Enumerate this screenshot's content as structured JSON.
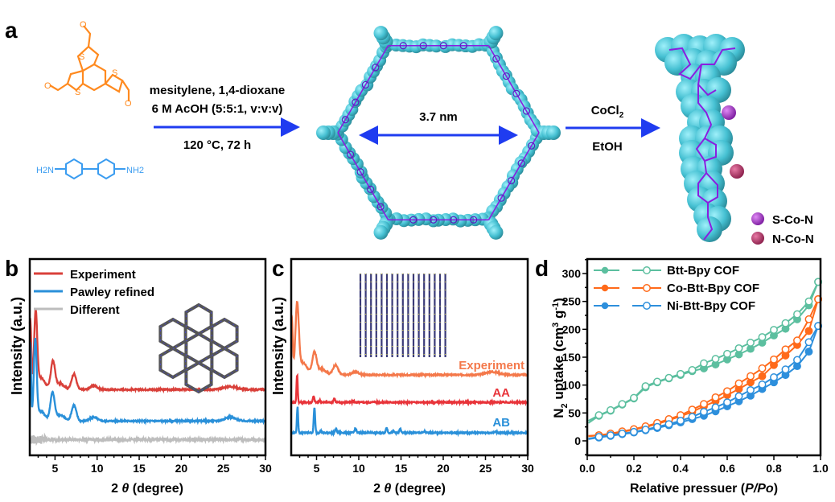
{
  "panel_a": {
    "label": "a",
    "aldehyde_color": "#ff8a1f",
    "amine_color": "#3a9cf0",
    "amine_left": "H2N",
    "amine_right": "NH2",
    "step1": {
      "line1": "mesitylene, 1,4-dioxane",
      "line2": "6 M AcOH (5:5:1, v:v:v)",
      "line3": "120 °C, 72 h"
    },
    "pore_size": "3.7 nm",
    "step2": {
      "reagent": "CoCl",
      "reagent_sub": "2",
      "solvent": "EtOH"
    },
    "arrow_color": "#1f3cf0",
    "framework_color": "#45c0d2",
    "bond_color": "#8a1ee0",
    "legend": [
      {
        "label": "S-Co-N",
        "color": "#9b2ec8"
      },
      {
        "label": "N-Co-N",
        "color": "#b8336a"
      }
    ]
  },
  "chart_data": [
    {
      "panel": "b",
      "type": "line",
      "xlabel_prefix": "2 ",
      "xlabel_symbol": "θ",
      "xlabel_suffix": " (degree)",
      "ylabel": "Intensity (a.u.)",
      "xlim": [
        2,
        30
      ],
      "ylim": [
        0,
        100
      ],
      "xticks": [
        5,
        10,
        15,
        20,
        25,
        30
      ],
      "yticks": [],
      "legend_position": "top-left",
      "series": [
        {
          "name": "Experiment",
          "color": "#d9403a",
          "baseline": 33.5,
          "peaks": [
            [
              2.05,
              36,
              0.12
            ],
            [
              2.7,
              38,
              0.18
            ],
            [
              3.3,
              6,
              0.5
            ],
            [
              4.75,
              14,
              0.25
            ],
            [
              5.6,
              3,
              0.5
            ],
            [
              7.25,
              8,
              0.28
            ],
            [
              9.6,
              2,
              0.4
            ],
            [
              25.8,
              1.5,
              0.8
            ]
          ]
        },
        {
          "name": "Pawley refined",
          "color": "#2a90d9",
          "baseline": 17.5,
          "peaks": [
            [
              2.05,
              40,
              0.1
            ],
            [
              2.65,
              40,
              0.17
            ],
            [
              3.3,
              5,
              0.5
            ],
            [
              4.7,
              14,
              0.25
            ],
            [
              5.6,
              3,
              0.5
            ],
            [
              7.25,
              8,
              0.28
            ],
            [
              9.6,
              2,
              0.4
            ],
            [
              25.8,
              2,
              0.6
            ]
          ]
        },
        {
          "name": "Different",
          "color": "#bdbdbd",
          "baseline": 8,
          "peaks": []
        }
      ]
    },
    {
      "panel": "c",
      "type": "line",
      "xlabel_prefix": "2 ",
      "xlabel_symbol": "θ",
      "xlabel_suffix": " (degree)",
      "ylabel": "Intensity (a.u.)",
      "xlim": [
        2,
        30
      ],
      "ylim": [
        0,
        100
      ],
      "xticks": [
        5,
        10,
        15,
        20,
        25,
        30
      ],
      "yticks": [],
      "series": [
        {
          "name": "Experiment",
          "color": "#f4784a",
          "baseline": 41,
          "peaks": [
            [
              2.05,
              30,
              0.12
            ],
            [
              2.7,
              35,
              0.2
            ],
            [
              3.4,
              6,
              0.5
            ],
            [
              4.75,
              11,
              0.25
            ],
            [
              5.6,
              3,
              0.5
            ],
            [
              7.25,
              5,
              0.3
            ],
            [
              9.6,
              1.5,
              0.4
            ],
            [
              25.8,
              1.5,
              0.8
            ]
          ]
        },
        {
          "name": "AA",
          "color": "#e8343a",
          "baseline": 27,
          "peaks": [
            [
              2.7,
              14,
              0.07
            ],
            [
              4.65,
              3,
              0.09
            ],
            [
              5.4,
              1,
              0.08
            ],
            [
              7.1,
              2,
              0.1
            ],
            [
              9.4,
              0.6,
              0.1
            ],
            [
              11.8,
              0.4,
              0.1
            ]
          ]
        },
        {
          "name": "AB",
          "color": "#2a90d9",
          "baseline": 11.5,
          "peaks": [
            [
              2.75,
              13.5,
              0.07
            ],
            [
              4.75,
              13,
              0.08
            ],
            [
              5.5,
              1,
              0.08
            ],
            [
              7.3,
              2,
              0.1
            ],
            [
              9.6,
              2.2,
              0.1
            ],
            [
              13.3,
              2.5,
              0.1
            ],
            [
              14.1,
              0.8,
              0.1
            ],
            [
              14.9,
              1.8,
              0.1
            ],
            [
              17.8,
              0.7,
              0.1
            ],
            [
              26.2,
              0.6,
              0.1
            ]
          ]
        }
      ]
    },
    {
      "panel": "d",
      "type": "line",
      "xlabel_prefix": "Relative pressuer (",
      "xlabel_symbol": "P/Po",
      "xlabel_suffix": ")",
      "ylabel_parts": [
        "N",
        "2",
        " uptake (cm",
        "3",
        " g",
        "-1",
        ")"
      ],
      "xlim": [
        0,
        1
      ],
      "ylim": [
        -26,
        326
      ],
      "xticks": [
        "0.0",
        "0.2",
        "0.4",
        "0.6",
        "0.8",
        "1.0"
      ],
      "yticks": [
        0,
        50,
        100,
        150,
        200,
        250,
        300
      ],
      "legend_position": "top-left",
      "x": [
        0.005,
        0.05,
        0.1,
        0.15,
        0.2,
        0.25,
        0.3,
        0.35,
        0.4,
        0.45,
        0.5,
        0.55,
        0.6,
        0.65,
        0.7,
        0.75,
        0.8,
        0.85,
        0.9,
        0.95,
        0.99
      ],
      "series": [
        {
          "name": "Btt-Bpy COF",
          "color": "#5cbf9f",
          "adsorption": [
            32,
            45,
            54,
            65,
            76,
            96,
            105,
            112,
            118,
            125,
            130,
            137,
            146,
            155,
            165,
            176,
            189,
            201,
            218,
            243,
            285
          ],
          "desorption": [
            36,
            46,
            55,
            66,
            77,
            98,
            106,
            113,
            120,
            127,
            139,
            147,
            156,
            166,
            176,
            186,
            199,
            211,
            227,
            250,
            285
          ]
        },
        {
          "name": "Co-Btt-Bpy COF",
          "color": "#ff6a1a",
          "adsorption": [
            8,
            10,
            12,
            16,
            20,
            25,
            30,
            37,
            44,
            52,
            62,
            71,
            82,
            93,
            105,
            116,
            136,
            153,
            172,
            197,
            254
          ],
          "desorption": [
            9,
            10,
            13,
            17,
            21,
            26,
            32,
            39,
            46,
            56,
            66,
            78,
            89,
            103,
            116,
            130,
            146,
            164,
            180,
            218,
            254
          ]
        },
        {
          "name": "Ni-Btt-Bpy COF",
          "color": "#2d8fdc",
          "adsorption": [
            3,
            6,
            9,
            12,
            15,
            19,
            23,
            28,
            33,
            39,
            45,
            53,
            62,
            71,
            81,
            93,
            105,
            118,
            134,
            160,
            206
          ],
          "desorption": [
            4,
            7,
            10,
            13,
            16,
            20,
            25,
            30,
            36,
            43,
            52,
            60,
            69,
            80,
            91,
            101,
            114,
            128,
            145,
            177,
            206
          ]
        }
      ]
    }
  ],
  "panel_labels": {
    "b": "b",
    "c": "c",
    "d": "d"
  }
}
